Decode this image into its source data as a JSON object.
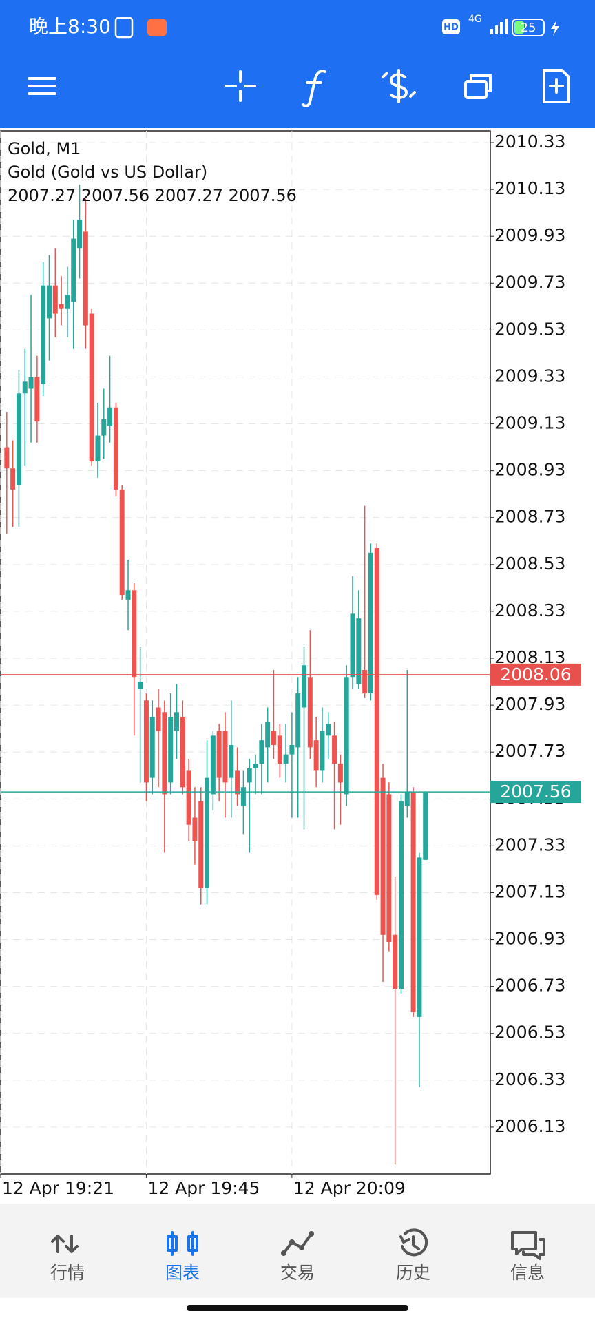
{
  "status_bar": {
    "time": "晚上8:30",
    "hd": "HD",
    "network": "4G",
    "battery": "25"
  },
  "chart_data": {
    "type": "candlestick",
    "title": "Gold, M1",
    "subtitle": "Gold (Gold vs US Dollar)",
    "open": [
      2009.03,
      2008.94,
      2008.87,
      2009.26,
      2009.28,
      2009.33,
      2009.3,
      2009.58,
      2009.72,
      2009.64,
      2009.62,
      2009.65,
      2009.88,
      2009.95,
      2009.6,
      2008.97,
      2009.08,
      2009.12,
      2009.2,
      2008.85,
      2008.38,
      2008.42,
      2008.0,
      2007.95,
      2007.62,
      2007.92,
      2007.9,
      2007.6,
      2007.82,
      2007.88,
      2007.65,
      2007.45,
      2007.52,
      2007.15,
      2007.55,
      2007.82,
      2007.82,
      2007.62,
      2007.65,
      2007.5,
      2007.6,
      2007.66,
      2007.68,
      2007.75,
      2007.82,
      2007.8,
      2007.68,
      2007.72,
      2007.75,
      2007.92,
      2008.05,
      2007.78,
      2007.65,
      2007.8,
      2007.8,
      2007.68,
      2007.55,
      2008.05,
      2008.02,
      2008.08,
      2007.98,
      2008.6,
      2007.62,
      2007.55,
      2006.95,
      2006.72,
      2007.5,
      2007.56,
      2006.6,
      2007.27
    ],
    "high": [
      2009.18,
      2009.06,
      2009.36,
      2009.45,
      2009.68,
      2009.42,
      2009.82,
      2009.85,
      2009.88,
      2009.76,
      2009.8,
      2010.0,
      2010.15,
      2010.09,
      2009.62,
      2009.22,
      2009.28,
      2009.42,
      2009.22,
      2008.87,
      2008.55,
      2008.45,
      2008.18,
      2007.98,
      2007.95,
      2008.0,
      2007.95,
      2007.98,
      2008.02,
      2007.95,
      2007.7,
      2007.58,
      2007.58,
      2007.78,
      2007.82,
      2007.85,
      2007.9,
      2007.95,
      2007.75,
      2007.65,
      2007.7,
      2007.72,
      2007.85,
      2007.92,
      2008.08,
      2007.85,
      2007.85,
      2007.9,
      2008.05,
      2008.18,
      2008.25,
      2007.88,
      2007.92,
      2007.9,
      2007.86,
      2007.72,
      2008.1,
      2008.48,
      2008.42,
      2008.78,
      2008.62,
      2008.62,
      2007.68,
      2007.6,
      2007.2,
      2007.55,
      2008.08,
      2007.58,
      2007.3,
      2007.56
    ],
    "low": [
      2008.66,
      2008.69,
      2008.69,
      2008.95,
      2009.05,
      2009.05,
      2009.25,
      2009.4,
      2009.5,
      2009.55,
      2009.5,
      2009.45,
      2009.75,
      2009.45,
      2008.95,
      2008.9,
      2008.98,
      2009.05,
      2008.82,
      2008.38,
      2008.25,
      2007.8,
      2007.6,
      2007.52,
      2007.55,
      2007.58,
      2007.3,
      2007.55,
      2007.7,
      2007.55,
      2007.35,
      2007.25,
      2007.08,
      2007.08,
      2007.48,
      2007.52,
      2007.45,
      2007.45,
      2007.5,
      2007.38,
      2007.3,
      2007.55,
      2007.55,
      2007.6,
      2007.7,
      2007.62,
      2007.6,
      2007.45,
      2007.45,
      2007.4,
      2007.7,
      2007.58,
      2007.6,
      2007.7,
      2007.4,
      2007.42,
      2007.5,
      2008.0,
      2008.0,
      2007.96,
      2007.95,
      2007.1,
      2006.75,
      2006.88,
      2005.97,
      2006.7,
      2007.45,
      2006.6,
      2006.3,
      2007.27
    ],
    "close": [
      2008.94,
      2008.85,
      2009.26,
      2009.31,
      2009.33,
      2009.14,
      2009.72,
      2009.72,
      2009.6,
      2009.62,
      2009.68,
      2009.92,
      2010.0,
      2009.55,
      2008.97,
      2009.08,
      2009.15,
      2009.2,
      2008.85,
      2008.4,
      2008.42,
      2008.05,
      2008.03,
      2007.6,
      2007.88,
      2007.82,
      2007.55,
      2007.88,
      2007.9,
      2007.58,
      2007.42,
      2007.35,
      2007.15,
      2007.62,
      2007.8,
      2007.62,
      2007.6,
      2007.76,
      2007.55,
      2007.58,
      2007.66,
      2007.68,
      2007.78,
      2007.86,
      2007.76,
      2007.68,
      2007.72,
      2007.76,
      2007.98,
      2008.1,
      2007.75,
      2007.65,
      2007.82,
      2007.85,
      2007.68,
      2007.6,
      2008.05,
      2008.32,
      2008.3,
      2007.98,
      2008.58,
      2007.12,
      2006.95,
      2006.92,
      2006.72,
      2007.52,
      2007.56,
      2006.62,
      2007.28,
      2007.56
    ],
    "up_color": "#26a69a",
    "down_color": "#ef5350",
    "xlim": [
      -1,
      79.7
    ],
    "xticks": [
      {
        "value": -1,
        "label": "12 Apr 19:21"
      },
      {
        "value": 23,
        "label": "12 Apr 19:45"
      },
      {
        "value": 47,
        "label": "12 Apr 20:09"
      }
    ],
    "ylim": [
      2005.93,
      2010.38
    ],
    "yticks": [
      2010.33,
      2010.13,
      2009.93,
      2009.73,
      2009.53,
      2009.33,
      2009.13,
      2008.93,
      2008.73,
      2008.53,
      2008.33,
      2008.13,
      2007.93,
      2007.73,
      2007.53,
      2007.33,
      2007.13,
      2006.93,
      2006.73,
      2006.53,
      2006.33,
      2006.13
    ],
    "grid": true,
    "ask": 2008.06,
    "ask_color": "#e8504d",
    "bid": 2007.56,
    "bid_color": "#26a69a"
  },
  "nav": {
    "items": [
      "行情",
      "图表",
      "交易",
      "历史",
      "信息"
    ],
    "active": 1,
    "active_color": "#1a73e8"
  }
}
